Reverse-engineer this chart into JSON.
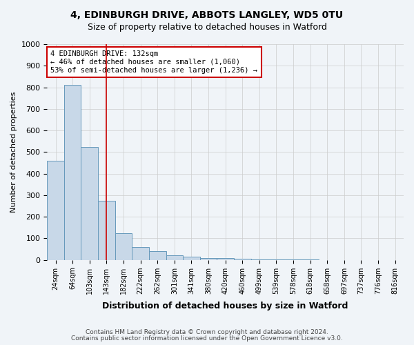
{
  "title1": "4, EDINBURGH DRIVE, ABBOTS LANGLEY, WD5 0TU",
  "title2": "Size of property relative to detached houses in Watford",
  "xlabel": "Distribution of detached houses by size in Watford",
  "ylabel": "Number of detached properties",
  "bin_labels": [
    "24sqm",
    "64sqm",
    "103sqm",
    "143sqm",
    "182sqm",
    "222sqm",
    "262sqm",
    "301sqm",
    "341sqm",
    "380sqm",
    "420sqm",
    "460sqm",
    "499sqm",
    "539sqm",
    "578sqm",
    "618sqm",
    "658sqm",
    "697sqm",
    "737sqm",
    "776sqm",
    "816sqm"
  ],
  "bar_values": [
    460,
    810,
    525,
    275,
    125,
    60,
    40,
    20,
    15,
    10,
    8,
    5,
    3,
    2,
    1,
    1,
    0,
    0,
    0,
    0,
    0
  ],
  "bar_color": "#c8d8e8",
  "bar_edge_color": "#6699bb",
  "grid_color": "#cccccc",
  "background_color": "#f0f4f8",
  "red_line_bin": 3,
  "red_line_color": "#cc0000",
  "annotation_text": "4 EDINBURGH DRIVE: 132sqm\n← 46% of detached houses are smaller (1,060)\n53% of semi-detached houses are larger (1,236) →",
  "annotation_box_color": "#ffffff",
  "annotation_border_color": "#cc0000",
  "footnote1": "Contains HM Land Registry data © Crown copyright and database right 2024.",
  "footnote2": "Contains public sector information licensed under the Open Government Licence v3.0.",
  "ylim": [
    0,
    1000
  ],
  "yticks": [
    0,
    100,
    200,
    300,
    400,
    500,
    600,
    700,
    800,
    900,
    1000
  ]
}
